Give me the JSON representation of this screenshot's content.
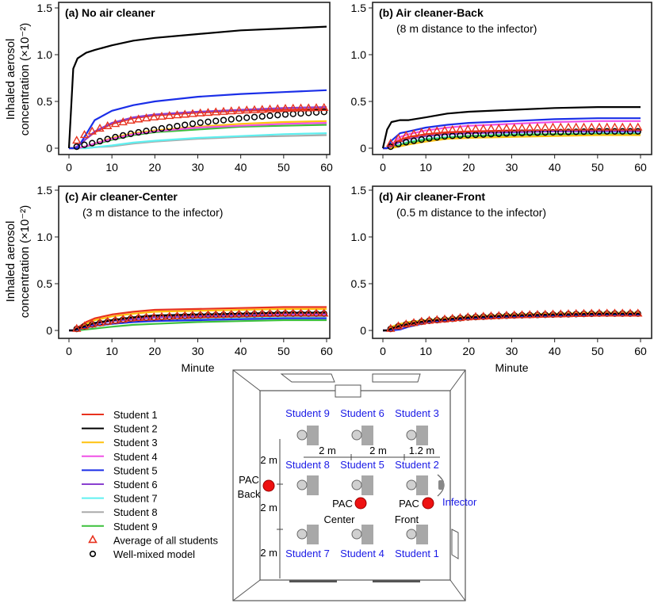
{
  "colors": {
    "Student 1": "#e8321e",
    "Student 2": "#000000",
    "Student 3": "#ffc20e",
    "Student 4": "#f050e6",
    "Student 5": "#1a2ee8",
    "Student 6": "#8a3fd0",
    "Student 7": "#5ff0f0",
    "Student 8": "#aaaaaa",
    "Student 9": "#3cc03c",
    "average": "#e8321e",
    "well_mixed": "#000000",
    "label_blue": "#1a1ae6",
    "pac": "#ee1111"
  },
  "chart_data": [
    {
      "type": "line",
      "panel": "a",
      "title": "(a) No air cleaner",
      "subtitle": "",
      "xlabel": "",
      "ylabel_line1": "Inhaled aerosol",
      "ylabel_line2": "concentration (×10⁻²)",
      "xlim": [
        0,
        60
      ],
      "ylim": [
        0,
        1.5
      ],
      "xticks": [
        "0",
        "10",
        "20",
        "30",
        "40",
        "50",
        "60"
      ],
      "yticks": [
        "0",
        "0.5",
        "1.0",
        "1.5"
      ],
      "x": [
        0,
        1,
        2,
        4,
        6,
        10,
        15,
        20,
        30,
        40,
        50,
        60
      ],
      "series": [
        {
          "name": "Student 1",
          "values": [
            0,
            0,
            0.02,
            0.1,
            0.17,
            0.26,
            0.32,
            0.35,
            0.38,
            0.4,
            0.41,
            0.42
          ]
        },
        {
          "name": "Student 2",
          "values": [
            0,
            0.85,
            0.96,
            1.02,
            1.05,
            1.1,
            1.15,
            1.18,
            1.22,
            1.26,
            1.28,
            1.3
          ]
        },
        {
          "name": "Student 3",
          "values": [
            0,
            0,
            0,
            0.02,
            0.05,
            0.11,
            0.16,
            0.19,
            0.23,
            0.26,
            0.28,
            0.29
          ]
        },
        {
          "name": "Student 4",
          "values": [
            0,
            0,
            0,
            0.02,
            0.05,
            0.1,
            0.15,
            0.18,
            0.22,
            0.24,
            0.26,
            0.27
          ]
        },
        {
          "name": "Student 5",
          "values": [
            0,
            0,
            0,
            0.15,
            0.3,
            0.4,
            0.46,
            0.5,
            0.55,
            0.58,
            0.6,
            0.62
          ]
        },
        {
          "name": "Student 6",
          "values": [
            0,
            0,
            0.02,
            0.1,
            0.18,
            0.27,
            0.33,
            0.36,
            0.39,
            0.41,
            0.43,
            0.44
          ]
        },
        {
          "name": "Student 7",
          "values": [
            0,
            0,
            0,
            0,
            0.01,
            0.03,
            0.06,
            0.08,
            0.11,
            0.13,
            0.15,
            0.16
          ]
        },
        {
          "name": "Student 8",
          "values": [
            0,
            0,
            0,
            0,
            0.01,
            0.02,
            0.05,
            0.07,
            0.1,
            0.12,
            0.13,
            0.14
          ]
        },
        {
          "name": "Student 9",
          "values": [
            0,
            0,
            0,
            0.02,
            0.04,
            0.09,
            0.14,
            0.17,
            0.2,
            0.23,
            0.24,
            0.25
          ]
        }
      ],
      "average": [
        0,
        0,
        0.1,
        0.15,
        0.19,
        0.25,
        0.3,
        0.33,
        0.37,
        0.4,
        0.42,
        0.43
      ],
      "well_mixed": [
        0,
        0,
        0.02,
        0.04,
        0.06,
        0.11,
        0.16,
        0.2,
        0.27,
        0.32,
        0.36,
        0.39
      ]
    },
    {
      "type": "line",
      "panel": "b",
      "title": "(b) Air cleaner-Back",
      "subtitle": "(8 m distance to the infector)",
      "xlabel": "",
      "xlim": [
        0,
        60
      ],
      "ylim": [
        0,
        1.5
      ],
      "xticks": [
        "0",
        "10",
        "20",
        "30",
        "40",
        "50",
        "60"
      ],
      "yticks": [
        "0",
        "0.5",
        "1.0",
        "1.5"
      ],
      "x": [
        0,
        1,
        2,
        4,
        6,
        10,
        15,
        20,
        30,
        40,
        50,
        60
      ],
      "series": [
        {
          "name": "Student 1",
          "values": [
            0,
            0,
            0.03,
            0.09,
            0.12,
            0.15,
            0.17,
            0.18,
            0.19,
            0.19,
            0.19,
            0.19
          ]
        },
        {
          "name": "Student 2",
          "values": [
            0,
            0.2,
            0.28,
            0.3,
            0.3,
            0.33,
            0.37,
            0.39,
            0.41,
            0.43,
            0.44,
            0.44
          ]
        },
        {
          "name": "Student 3",
          "values": [
            0,
            0,
            0,
            0.02,
            0.04,
            0.07,
            0.1,
            0.11,
            0.12,
            0.13,
            0.14,
            0.14
          ]
        },
        {
          "name": "Student 4",
          "values": [
            0,
            0,
            0.04,
            0.12,
            0.15,
            0.19,
            0.22,
            0.24,
            0.26,
            0.28,
            0.29,
            0.29
          ]
        },
        {
          "name": "Student 5",
          "values": [
            0,
            0,
            0.08,
            0.16,
            0.18,
            0.22,
            0.25,
            0.27,
            0.29,
            0.31,
            0.32,
            0.32
          ]
        },
        {
          "name": "Student 6",
          "values": [
            0,
            0,
            0.02,
            0.07,
            0.1,
            0.13,
            0.15,
            0.16,
            0.17,
            0.18,
            0.18,
            0.18
          ]
        },
        {
          "name": "Student 7",
          "values": [
            0,
            0,
            0.01,
            0.04,
            0.07,
            0.1,
            0.12,
            0.13,
            0.15,
            0.15,
            0.16,
            0.16
          ]
        },
        {
          "name": "Student 8",
          "values": [
            0,
            0,
            0.01,
            0.04,
            0.07,
            0.1,
            0.12,
            0.13,
            0.15,
            0.15,
            0.16,
            0.16
          ]
        },
        {
          "name": "Student 9",
          "values": [
            0,
            0,
            0.01,
            0.03,
            0.06,
            0.09,
            0.11,
            0.13,
            0.14,
            0.15,
            0.15,
            0.15
          ]
        }
      ],
      "average": [
        0,
        0,
        0.06,
        0.11,
        0.14,
        0.17,
        0.19,
        0.2,
        0.21,
        0.22,
        0.22,
        0.22
      ],
      "well_mixed": [
        0,
        0,
        0.02,
        0.05,
        0.07,
        0.1,
        0.13,
        0.14,
        0.16,
        0.17,
        0.18,
        0.18
      ]
    },
    {
      "type": "line",
      "panel": "c",
      "title": "(c) Air cleaner-Center",
      "subtitle": "(3 m distance to the infector)",
      "xlabel": "Minute",
      "ylabel_line1": "Inhaled aerosol",
      "ylabel_line2": "concentration (×10⁻²)",
      "xlim": [
        0,
        60
      ],
      "ylim": [
        0,
        1.5
      ],
      "xticks": [
        "0",
        "10",
        "20",
        "30",
        "40",
        "50",
        "60"
      ],
      "yticks": [
        "0",
        "0.5",
        "1.0",
        "1.5"
      ],
      "x": [
        0,
        1,
        2,
        4,
        6,
        10,
        15,
        20,
        30,
        40,
        50,
        60
      ],
      "series": [
        {
          "name": "Student 1",
          "values": [
            0,
            0,
            0.03,
            0.09,
            0.13,
            0.17,
            0.2,
            0.22,
            0.23,
            0.24,
            0.25,
            0.25
          ]
        },
        {
          "name": "Student 2",
          "values": [
            0,
            0,
            0.02,
            0.05,
            0.08,
            0.11,
            0.14,
            0.16,
            0.17,
            0.18,
            0.19,
            0.19
          ]
        },
        {
          "name": "Student 3",
          "values": [
            0,
            0,
            0.02,
            0.07,
            0.11,
            0.15,
            0.18,
            0.2,
            0.21,
            0.22,
            0.23,
            0.23
          ]
        },
        {
          "name": "Student 4",
          "values": [
            0,
            0,
            0.02,
            0.04,
            0.07,
            0.1,
            0.13,
            0.14,
            0.16,
            0.17,
            0.17,
            0.17
          ]
        },
        {
          "name": "Student 5",
          "values": [
            0,
            0,
            0.01,
            0.03,
            0.05,
            0.07,
            0.09,
            0.1,
            0.11,
            0.12,
            0.13,
            0.13
          ]
        },
        {
          "name": "Student 6",
          "values": [
            0,
            0,
            0.02,
            0.05,
            0.07,
            0.1,
            0.12,
            0.14,
            0.15,
            0.16,
            0.16,
            0.16
          ]
        },
        {
          "name": "Student 7",
          "values": [
            0,
            0,
            0.01,
            0.03,
            0.05,
            0.07,
            0.09,
            0.11,
            0.13,
            0.14,
            0.15,
            0.15
          ]
        },
        {
          "name": "Student 8",
          "values": [
            0,
            0,
            0.01,
            0.03,
            0.05,
            0.07,
            0.09,
            0.11,
            0.13,
            0.14,
            0.15,
            0.15
          ]
        },
        {
          "name": "Student 9",
          "values": [
            0,
            0,
            0,
            0.01,
            0.02,
            0.04,
            0.06,
            0.07,
            0.09,
            0.1,
            0.11,
            0.11
          ]
        }
      ],
      "average": [
        0,
        0,
        0.02,
        0.05,
        0.07,
        0.1,
        0.13,
        0.14,
        0.16,
        0.17,
        0.18,
        0.18
      ],
      "well_mixed": [
        0,
        0,
        0.02,
        0.05,
        0.07,
        0.1,
        0.13,
        0.14,
        0.16,
        0.17,
        0.18,
        0.18
      ]
    },
    {
      "type": "line",
      "panel": "d",
      "title": "(d) Air cleaner-Front",
      "subtitle": "(0.5 m distance to the infector)",
      "xlabel": "Minute",
      "xlim": [
        0,
        60
      ],
      "ylim": [
        0,
        1.5
      ],
      "xticks": [
        "0",
        "10",
        "20",
        "30",
        "40",
        "50",
        "60"
      ],
      "yticks": [
        "0",
        "0.5",
        "1.0",
        "1.5"
      ],
      "x": [
        0,
        1,
        2,
        4,
        6,
        10,
        15,
        20,
        30,
        40,
        50,
        60
      ],
      "series": [
        {
          "name": "Student 1",
          "values": [
            0,
            0,
            0.01,
            0.04,
            0.06,
            0.09,
            0.11,
            0.13,
            0.14,
            0.15,
            0.16,
            0.16
          ]
        },
        {
          "name": "Student 2",
          "values": [
            0,
            0,
            0.02,
            0.05,
            0.07,
            0.1,
            0.12,
            0.14,
            0.16,
            0.17,
            0.18,
            0.18
          ]
        },
        {
          "name": "Student 3",
          "values": [
            0,
            0,
            0.04,
            0.07,
            0.09,
            0.11,
            0.13,
            0.15,
            0.17,
            0.18,
            0.19,
            0.19
          ]
        },
        {
          "name": "Student 4",
          "values": [
            0,
            0,
            0.02,
            0.05,
            0.07,
            0.1,
            0.12,
            0.14,
            0.16,
            0.17,
            0.18,
            0.18
          ]
        },
        {
          "name": "Student 5",
          "values": [
            0,
            0,
            0,
            0.01,
            0.04,
            0.08,
            0.11,
            0.13,
            0.15,
            0.16,
            0.17,
            0.17
          ]
        },
        {
          "name": "Student 6",
          "values": [
            0,
            0,
            0.02,
            0.05,
            0.07,
            0.1,
            0.12,
            0.14,
            0.16,
            0.17,
            0.18,
            0.18
          ]
        },
        {
          "name": "Student 7",
          "values": [
            0,
            0,
            0.02,
            0.05,
            0.07,
            0.1,
            0.12,
            0.14,
            0.16,
            0.17,
            0.18,
            0.18
          ]
        },
        {
          "name": "Student 8",
          "values": [
            0,
            0,
            0.02,
            0.05,
            0.07,
            0.1,
            0.12,
            0.14,
            0.16,
            0.17,
            0.18,
            0.18
          ]
        },
        {
          "name": "Student 9",
          "values": [
            0,
            0,
            0.03,
            0.06,
            0.08,
            0.1,
            0.12,
            0.14,
            0.16,
            0.17,
            0.18,
            0.19
          ]
        }
      ],
      "average": [
        0,
        0,
        0.02,
        0.05,
        0.07,
        0.1,
        0.12,
        0.14,
        0.16,
        0.17,
        0.18,
        0.18
      ],
      "well_mixed": [
        0,
        0,
        0.02,
        0.05,
        0.07,
        0.1,
        0.12,
        0.14,
        0.16,
        0.17,
        0.18,
        0.18
      ]
    }
  ],
  "legend": {
    "items": [
      "Student 1",
      "Student 2",
      "Student 3",
      "Student 4",
      "Student 5",
      "Student 6",
      "Student 7",
      "Student 8",
      "Student 9"
    ],
    "average_label": "Average of all students",
    "well_mixed_label": "Well-mixed model"
  },
  "diagram": {
    "students_row1": [
      "Student 9",
      "Student 6",
      "Student 3"
    ],
    "students_row2": [
      "Student 8",
      "Student 5",
      "Student 2"
    ],
    "students_row3": [
      "Student 7",
      "Student 4",
      "Student 1"
    ],
    "dim_h": [
      "2 m",
      "2 m",
      "1.2 m"
    ],
    "dim_v": [
      "2 m",
      "2 m",
      "2 m"
    ],
    "pac_back": [
      "PAC",
      "Back"
    ],
    "pac_center": [
      "PAC",
      "Center"
    ],
    "pac_front": [
      "PAC",
      "Front"
    ],
    "infector": "Infector"
  }
}
